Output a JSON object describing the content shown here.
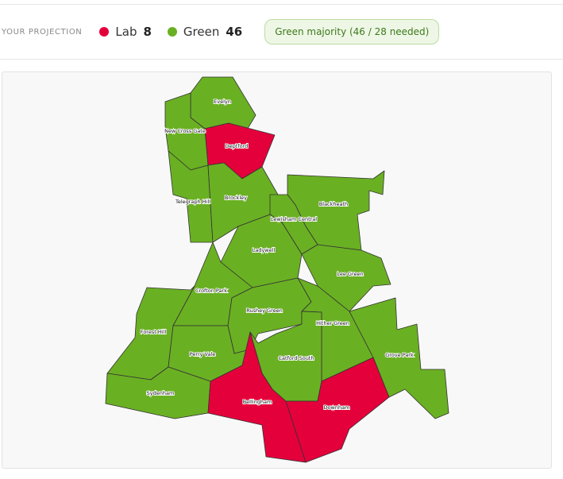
{
  "header": {
    "label": "YOUR PROJECTION",
    "parties": [
      {
        "name": "Lab",
        "seats": 8,
        "color": "#e4003b"
      },
      {
        "name": "Green",
        "seats": 46,
        "color": "#6ab023"
      }
    ],
    "status": "Green majority (46 / 28 needed)"
  },
  "map": {
    "wards": [
      {
        "name": "Evelyn",
        "color": "#6ab023"
      },
      {
        "name": "New Cross Gate",
        "color": "#6ab023"
      },
      {
        "name": "Deptford",
        "color": "#e4003b"
      },
      {
        "name": "Telegraph Hill",
        "color": "#6ab023"
      },
      {
        "name": "Brockley",
        "color": "#6ab023"
      },
      {
        "name": "Blackheath",
        "color": "#6ab023"
      },
      {
        "name": "Lewisham Central",
        "color": "#6ab023"
      },
      {
        "name": "Ladywell",
        "color": "#6ab023"
      },
      {
        "name": "Lee Green",
        "color": "#6ab023"
      },
      {
        "name": "Crofton Park",
        "color": "#6ab023"
      },
      {
        "name": "Rushey Green",
        "color": "#6ab023"
      },
      {
        "name": "Hither Green",
        "color": "#6ab023"
      },
      {
        "name": "Catford South",
        "color": "#6ab023"
      },
      {
        "name": "Grove Park",
        "color": "#6ab023"
      },
      {
        "name": "Forest Hill",
        "color": "#6ab023"
      },
      {
        "name": "Perry Vale",
        "color": "#6ab023"
      },
      {
        "name": "Sydenham",
        "color": "#6ab023"
      },
      {
        "name": "Bellingham",
        "color": "#e4003b"
      },
      {
        "name": "Downham",
        "color": "#e4003b"
      }
    ]
  }
}
